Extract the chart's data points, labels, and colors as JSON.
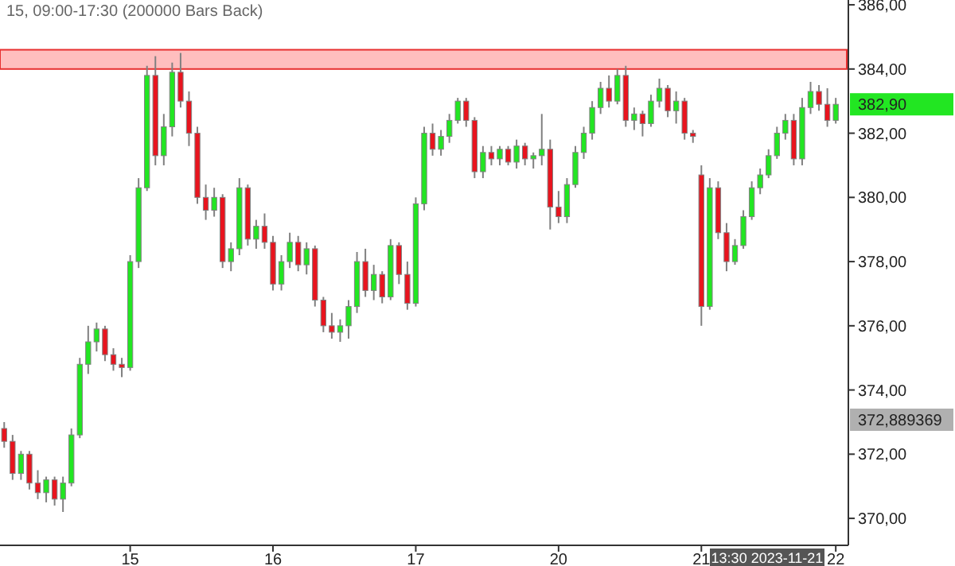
{
  "chart_data": {
    "type": "candlestick",
    "title": "15, 09:00-17:30 (200000 Bars Back)",
    "categories": [
      null,
      null,
      null,
      null,
      null,
      null,
      null,
      null,
      null,
      null,
      null,
      null,
      null,
      null,
      null,
      "15",
      null,
      null,
      null,
      null,
      null,
      null,
      null,
      null,
      null,
      null,
      null,
      null,
      null,
      null,
      null,
      null,
      "16",
      null,
      null,
      null,
      null,
      null,
      null,
      null,
      null,
      null,
      null,
      null,
      null,
      null,
      null,
      null,
      null,
      "17",
      null,
      null,
      null,
      null,
      null,
      null,
      null,
      null,
      null,
      null,
      null,
      null,
      null,
      null,
      null,
      null,
      "20",
      null,
      null,
      null,
      null,
      null,
      null,
      null,
      null,
      null,
      null,
      null,
      null,
      null,
      null,
      null,
      null,
      "21",
      null,
      null,
      null,
      null,
      null,
      null,
      null,
      null,
      null,
      null,
      null,
      null,
      null,
      null,
      null,
      "22"
    ],
    "ohlc": [
      [
        372.8,
        373,
        372.2,
        372.4
      ],
      [
        372.4,
        372.6,
        371.2,
        371.4
      ],
      [
        371.4,
        372.1,
        371.2,
        372.0
      ],
      [
        372.0,
        372.1,
        370.9,
        371.1
      ],
      [
        371.1,
        371.5,
        370.6,
        370.8
      ],
      [
        370.8,
        371.3,
        370.5,
        371.2
      ],
      [
        371.2,
        371.3,
        370.4,
        370.6
      ],
      [
        370.6,
        371.3,
        370.2,
        371.1
      ],
      [
        371.1,
        372.8,
        371.0,
        372.6
      ],
      [
        372.6,
        375.0,
        372.5,
        374.8
      ],
      [
        374.8,
        376.0,
        374.5,
        375.5
      ],
      [
        375.5,
        376.1,
        375.2,
        375.9
      ],
      [
        375.9,
        376.0,
        374.9,
        375.1
      ],
      [
        375.1,
        375.3,
        374.6,
        374.8
      ],
      [
        374.8,
        375.0,
        374.4,
        374.7
      ],
      [
        374.7,
        378.2,
        374.6,
        378.0
      ],
      [
        378.0,
        380.6,
        377.8,
        380.3
      ],
      [
        380.3,
        384.1,
        380.2,
        383.8
      ],
      [
        383.8,
        384.4,
        381.0,
        381.3
      ],
      [
        381.3,
        382.6,
        381.0,
        382.2
      ],
      [
        382.2,
        384.2,
        381.9,
        383.9
      ],
      [
        383.9,
        384.5,
        382.8,
        383.0
      ],
      [
        383.0,
        383.3,
        381.6,
        382.0
      ],
      [
        382.0,
        382.2,
        379.8,
        380.0
      ],
      [
        380.0,
        380.4,
        379.3,
        379.6
      ],
      [
        379.6,
        380.3,
        379.4,
        380.0
      ],
      [
        380.0,
        380.1,
        377.8,
        378.0
      ],
      [
        378.0,
        378.6,
        377.7,
        378.4
      ],
      [
        378.4,
        380.6,
        378.2,
        380.3
      ],
      [
        380.3,
        380.4,
        378.5,
        378.7
      ],
      [
        378.7,
        379.3,
        378.4,
        379.1
      ],
      [
        379.1,
        379.5,
        378.4,
        378.6
      ],
      [
        378.6,
        378.8,
        377.1,
        377.3
      ],
      [
        377.3,
        378.2,
        377.1,
        378.0
      ],
      [
        378.0,
        378.9,
        377.8,
        378.6
      ],
      [
        378.6,
        378.8,
        377.7,
        377.9
      ],
      [
        377.9,
        378.6,
        377.6,
        378.4
      ],
      [
        378.4,
        378.5,
        376.6,
        376.8
      ],
      [
        376.8,
        376.9,
        375.8,
        376.0
      ],
      [
        376.0,
        376.4,
        375.6,
        375.8
      ],
      [
        375.8,
        376.2,
        375.5,
        376.0
      ],
      [
        376.0,
        376.8,
        375.6,
        376.6
      ],
      [
        376.6,
        378.3,
        376.4,
        378.0
      ],
      [
        378.0,
        378.4,
        376.9,
        377.1
      ],
      [
        377.1,
        377.9,
        376.8,
        377.6
      ],
      [
        377.6,
        377.7,
        376.7,
        376.9
      ],
      [
        376.9,
        378.7,
        376.8,
        378.5
      ],
      [
        378.5,
        378.6,
        377.3,
        377.6
      ],
      [
        377.6,
        378.0,
        376.5,
        376.7
      ],
      [
        376.7,
        380.0,
        376.6,
        379.8
      ],
      [
        379.8,
        382.2,
        379.6,
        382.0
      ],
      [
        382.0,
        382.3,
        381.3,
        381.5
      ],
      [
        381.5,
        382.1,
        381.3,
        381.9
      ],
      [
        381.9,
        382.6,
        381.7,
        382.4
      ],
      [
        382.4,
        383.1,
        382.3,
        383.0
      ],
      [
        383.0,
        383.1,
        382.2,
        382.4
      ],
      [
        382.4,
        382.5,
        380.6,
        380.8
      ],
      [
        380.8,
        381.6,
        380.6,
        381.4
      ],
      [
        381.4,
        381.6,
        381.0,
        381.2
      ],
      [
        381.2,
        381.6,
        381.0,
        381.5
      ],
      [
        381.5,
        381.6,
        381.0,
        381.1
      ],
      [
        381.1,
        381.8,
        380.9,
        381.6
      ],
      [
        381.6,
        381.7,
        381.0,
        381.2
      ],
      [
        381.2,
        381.4,
        380.9,
        381.3
      ],
      [
        381.3,
        382.6,
        381.0,
        381.5
      ],
      [
        381.5,
        381.8,
        379.0,
        379.7
      ],
      [
        379.7,
        380.2,
        379.2,
        379.4
      ],
      [
        379.4,
        380.6,
        379.2,
        380.4
      ],
      [
        380.4,
        381.6,
        380.3,
        381.4
      ],
      [
        381.4,
        382.2,
        381.2,
        382.0
      ],
      [
        382.0,
        383.0,
        381.8,
        382.8
      ],
      [
        382.8,
        383.6,
        382.6,
        383.4
      ],
      [
        383.4,
        383.8,
        382.8,
        383.0
      ],
      [
        383.0,
        384.0,
        382.9,
        383.8
      ],
      [
        383.8,
        384.1,
        382.2,
        382.4
      ],
      [
        382.4,
        382.8,
        382.1,
        382.6
      ],
      [
        382.6,
        382.7,
        381.9,
        382.3
      ],
      [
        382.3,
        383.2,
        382.2,
        383.0
      ],
      [
        383.0,
        383.7,
        382.8,
        383.4
      ],
      [
        383.4,
        383.5,
        382.5,
        382.7
      ],
      [
        382.7,
        383.3,
        382.3,
        383.0
      ],
      [
        383.0,
        383.1,
        381.8,
        382.0
      ],
      [
        382.0,
        382.1,
        381.7,
        381.9
      ],
      [
        380.7,
        381.0,
        376.0,
        376.6
      ],
      [
        376.6,
        380.6,
        376.5,
        380.3
      ],
      [
        380.3,
        380.5,
        378.7,
        378.9
      ],
      [
        378.9,
        379.2,
        377.7,
        378.0
      ],
      [
        378.0,
        378.7,
        377.9,
        378.5
      ],
      [
        378.5,
        379.6,
        378.4,
        379.4
      ],
      [
        379.4,
        380.5,
        379.3,
        380.3
      ],
      [
        380.3,
        380.9,
        380.1,
        380.7
      ],
      [
        380.7,
        381.5,
        380.6,
        381.3
      ],
      [
        381.3,
        382.2,
        381.2,
        382.0
      ],
      [
        382.0,
        382.6,
        381.8,
        382.4
      ],
      [
        382.4,
        382.6,
        381.0,
        381.2
      ],
      [
        381.2,
        383.1,
        381.0,
        382.8
      ],
      [
        382.8,
        383.6,
        382.6,
        383.3
      ],
      [
        383.3,
        383.5,
        382.7,
        382.9
      ],
      [
        382.9,
        383.4,
        382.2,
        382.4
      ],
      [
        382.4,
        383.1,
        382.3,
        382.9
      ]
    ],
    "ylim": [
      369.16,
      386.15
    ],
    "yticks": [
      {
        "value": 370,
        "label": "370,00"
      },
      {
        "value": 372,
        "label": "372,00"
      },
      {
        "value": 374,
        "label": "374,00"
      },
      {
        "value": 376,
        "label": "376,00"
      },
      {
        "value": 378,
        "label": "378,00"
      },
      {
        "value": 380,
        "label": "380,00"
      },
      {
        "value": 382,
        "label": "382,00"
      },
      {
        "value": 384,
        "label": "384,00"
      },
      {
        "value": 386,
        "label": "386,00"
      }
    ],
    "bands": [
      {
        "axis": "y",
        "from": 384.0,
        "to": 384.6,
        "color": "#ffb3b3"
      }
    ],
    "annotations": [
      "382,90",
      "372,889369",
      "13:30 2023-11-21"
    ],
    "grid": false
  }
}
